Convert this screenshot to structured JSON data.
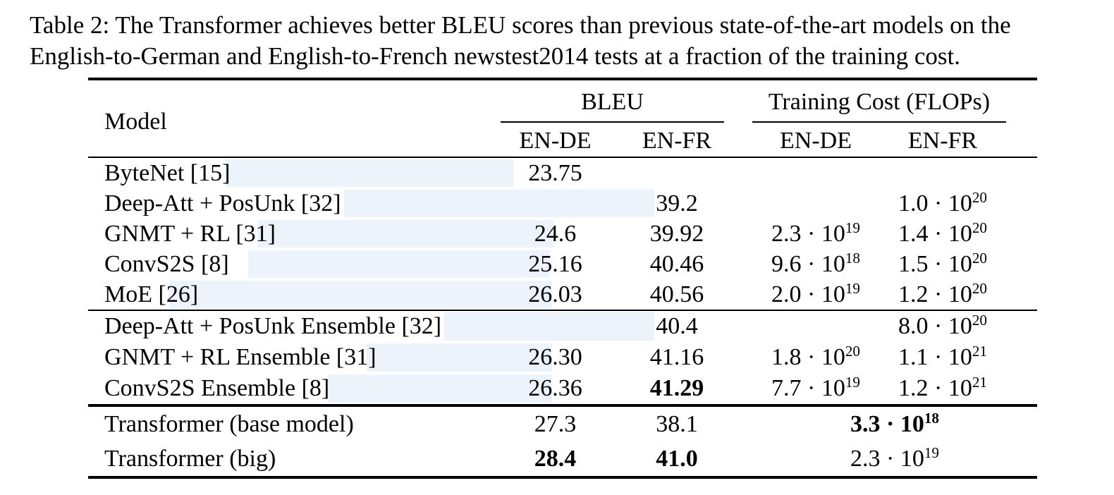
{
  "caption": {
    "line1": "Table 2: The Transformer achieves better BLEU scores than previous state-of-the-art models on the",
    "line2": "English-to-German and English-to-French newstest2014 tests at a fraction of the training cost."
  },
  "colors": {
    "highlight": "#ecf3fb",
    "rule": "#000000"
  },
  "table": {
    "header": {
      "model": "Model",
      "bleu_group": "BLEU",
      "cost_group": "Training Cost (FLOPs)",
      "bleu_cols": [
        "EN-DE",
        "EN-FR"
      ],
      "cost_cols": [
        "EN-DE",
        "EN-FR"
      ]
    },
    "groups": [
      {
        "rows": [
          {
            "model": "ByteNet [15]",
            "bleu_en_de": {
              "v": "23.75"
            },
            "bleu_en_fr": null,
            "cost_en_de": null,
            "cost_en_fr": null,
            "hl": [
              195,
              408
            ]
          },
          {
            "model": "Deep-Att + PosUnk [32]",
            "bleu_en_de": null,
            "bleu_en_fr": {
              "v": "39.2"
            },
            "cost_en_de": null,
            "cost_en_fr": {
              "c": "1.0",
              "e": "20"
            },
            "hl": [
              363,
              440
            ]
          },
          {
            "model": "GNMT + RL [31]",
            "bleu_en_de": {
              "v": "24.6"
            },
            "bleu_en_fr": {
              "v": "39.92"
            },
            "cost_en_de": {
              "c": "2.3",
              "e": "19"
            },
            "cost_en_fr": {
              "c": "1.4",
              "e": "20"
            },
            "hl": [
              240,
              420
            ]
          },
          {
            "model": "ConvS2S [8]",
            "bleu_en_de": {
              "v": "25.16"
            },
            "bleu_en_fr": {
              "v": "40.46"
            },
            "cost_en_de": {
              "c": "9.6",
              "e": "18"
            },
            "cost_en_fr": {
              "c": "1.5",
              "e": "20"
            },
            "hl": [
              227,
              428
            ]
          },
          {
            "model": "MoE [26]",
            "bleu_en_de": {
              "v": "26.03"
            },
            "bleu_en_fr": {
              "v": "40.56"
            },
            "cost_en_de": {
              "c": "2.0",
              "e": "19"
            },
            "cost_en_fr": {
              "c": "1.2",
              "e": "20"
            },
            "hl": [
              115,
              543
            ]
          }
        ]
      },
      {
        "rows": [
          {
            "model": "Deep-Att + PosUnk Ensemble [32]",
            "bleu_en_de": null,
            "bleu_en_fr": {
              "v": "40.4"
            },
            "cost_en_de": null,
            "cost_en_fr": {
              "c": "8.0",
              "e": "20"
            },
            "hl": [
              505,
              298
            ]
          },
          {
            "model": "GNMT + RL Ensemble [31]",
            "bleu_en_de": {
              "v": "26.30"
            },
            "bleu_en_fr": {
              "v": "41.16"
            },
            "cost_en_de": {
              "c": "1.8",
              "e": "20"
            },
            "cost_en_fr": {
              "c": "1.1",
              "e": "21"
            },
            "hl": [
              395,
              263
            ]
          },
          {
            "model": "ConvS2S Ensemble [8]",
            "bleu_en_de": {
              "v": "26.36"
            },
            "bleu_en_fr": {
              "v": "41.29",
              "b": true
            },
            "cost_en_de": {
              "c": "7.7",
              "e": "19"
            },
            "cost_en_fr": {
              "c": "1.2",
              "e": "21"
            },
            "hl": [
              340,
              318
            ]
          }
        ]
      },
      {
        "rows": [
          {
            "model": "Transformer (base model)",
            "bleu_en_de": {
              "v": "27.3"
            },
            "bleu_en_fr": {
              "v": "38.1"
            },
            "cost_span": {
              "c": "3.3",
              "e": "18",
              "b": true
            }
          },
          {
            "model": "Transformer (big)",
            "bleu_en_de": {
              "v": "28.4",
              "b": true
            },
            "bleu_en_fr": {
              "v": "41.0",
              "b": true
            },
            "cost_span": {
              "c": "2.3",
              "e": "19"
            }
          }
        ]
      }
    ]
  }
}
